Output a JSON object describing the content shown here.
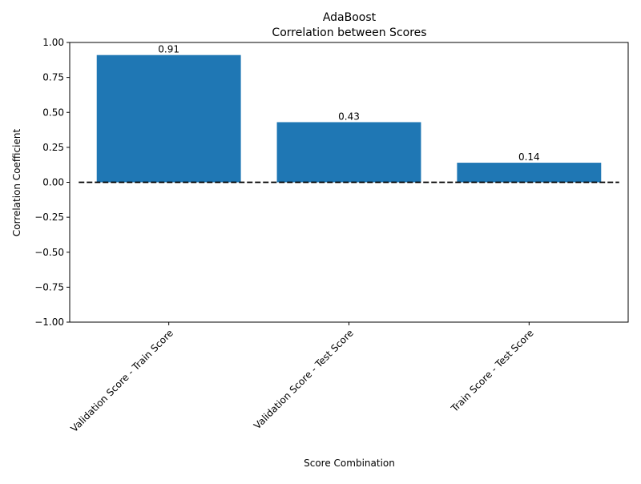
{
  "chart_data": {
    "type": "bar",
    "title": "AdaBoost",
    "subtitle": "Correlation between Scores",
    "xlabel": "Score Combination",
    "ylabel": "Correlation Coefficient",
    "categories": [
      "Validation Score - Train Score",
      "Validation Score - Test Score",
      "Train Score - Test Score"
    ],
    "values": [
      0.91,
      0.43,
      0.14
    ],
    "data_labels": [
      "0.91",
      "0.43",
      "0.14"
    ],
    "ylim": [
      -1.0,
      1.0
    ],
    "yticks": [
      -1.0,
      -0.75,
      -0.5,
      -0.25,
      0.0,
      0.25,
      0.5,
      0.75,
      1.0
    ],
    "ytick_labels": [
      "−1.00",
      "−0.75",
      "−0.50",
      "−0.25",
      "0.00",
      "0.25",
      "0.50",
      "0.75",
      "1.00"
    ],
    "reference_line": {
      "y": 0,
      "style": "dashed",
      "color": "#000000"
    },
    "bar_color": "#1f77b4",
    "grid": false
  }
}
